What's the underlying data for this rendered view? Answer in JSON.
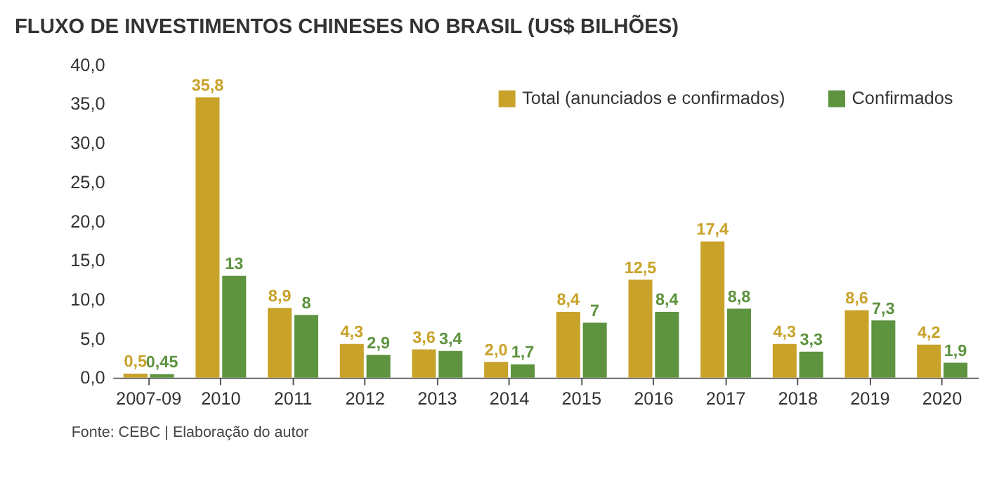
{
  "chart_data": {
    "type": "bar",
    "title": "FLUXO DE INVESTIMENTOS CHINESES NO BRASIL (US$ BILHÕES)",
    "categories": [
      "2007-09",
      "2010",
      "2011",
      "2012",
      "2013",
      "2014",
      "2015",
      "2016",
      "2017",
      "2018",
      "2019",
      "2020"
    ],
    "series": [
      {
        "name": "Total (anunciados e confirmados)",
        "color": "#c9a22a",
        "values": [
          0.5,
          35.8,
          8.9,
          4.3,
          3.6,
          2.0,
          8.4,
          12.5,
          17.4,
          4.3,
          8.6,
          4.2
        ],
        "value_labels": [
          "0,5",
          "35,8",
          "8,9",
          "4,3",
          "3,6",
          "2,0",
          "8,4",
          "12,5",
          "17,4",
          "4,3",
          "8,6",
          "4,2"
        ]
      },
      {
        "name": "Confirmados",
        "color": "#5e9340",
        "values": [
          0.45,
          13,
          8,
          2.9,
          3.4,
          1.7,
          7,
          8.4,
          8.8,
          3.3,
          7.3,
          1.9
        ],
        "value_labels": [
          "0,45",
          "13",
          "8",
          "2,9",
          "3,4",
          "1,7",
          "7",
          "8,4",
          "8,8",
          "3,3",
          "7,3",
          "1,9"
        ]
      }
    ],
    "ylim": [
      0,
      40
    ],
    "yticks": [
      {
        "value": 0,
        "label": "0,0"
      },
      {
        "value": 5,
        "label": "5,0"
      },
      {
        "value": 10,
        "label": "10,0"
      },
      {
        "value": 15,
        "label": "15,0"
      },
      {
        "value": 20,
        "label": "20,0"
      },
      {
        "value": 25,
        "label": "25,0"
      },
      {
        "value": 30,
        "label": "30,0"
      },
      {
        "value": 35,
        "label": "35,0"
      },
      {
        "value": 40,
        "label": "40,0"
      }
    ],
    "grid": false,
    "legend": "top right",
    "annotations": [
      "Fonte: CEBC | Elaboração do autor"
    ]
  }
}
